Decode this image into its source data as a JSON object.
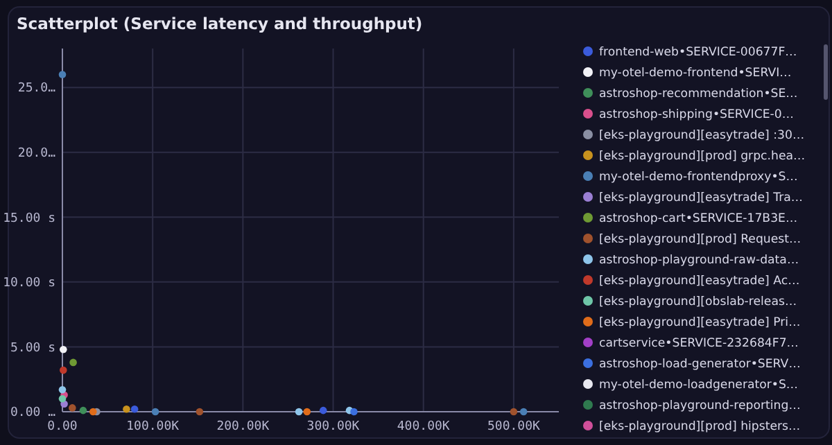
{
  "chart_data": {
    "type": "scatter",
    "title": "Scatterplot (Service latency and throughput)",
    "xlim": [
      0,
      550000
    ],
    "ylim": [
      0,
      28
    ],
    "xticks": [
      {
        "value": 0,
        "label": "0.00"
      },
      {
        "value": 100000,
        "label": "100.00K"
      },
      {
        "value": 200000,
        "label": "200.00K"
      },
      {
        "value": 300000,
        "label": "300.00K"
      },
      {
        "value": 400000,
        "label": "400.00K"
      },
      {
        "value": 500000,
        "label": "500.00K"
      }
    ],
    "yticks": [
      {
        "value": 0,
        "label": "0.00 …"
      },
      {
        "value": 5,
        "label": "5.00 s"
      },
      {
        "value": 10,
        "label": "10.00 s"
      },
      {
        "value": 15,
        "label": "15.00 s"
      },
      {
        "value": 20,
        "label": "20.0…"
      },
      {
        "value": 25,
        "label": "25.0…"
      }
    ],
    "grid": true,
    "legend": "right",
    "marker": "circle",
    "series": [
      {
        "name": "frontend-web•SERVICE-00677F…",
        "color": "#3b5bdb",
        "x": [
          80000,
          289000
        ],
        "values": [
          0.2,
          0.1
        ]
      },
      {
        "name": "my-otel-demo-frontend•SERVI…",
        "color": "#f2f2f7",
        "x": [
          1000
        ],
        "values": [
          4.8
        ]
      },
      {
        "name": "astroshop-recommendation•SE…",
        "color": "#3f8f5a",
        "x": [
          23000
        ],
        "values": [
          0.1
        ]
      },
      {
        "name": "astroshop-shipping•SERVICE-0…",
        "color": "#d94f8c",
        "x": [
          2000
        ],
        "values": [
          1.3
        ]
      },
      {
        "name": "[eks-playground][easytrade] :30…",
        "color": "#8a8fa3",
        "x": [
          38000
        ],
        "values": [
          0
        ]
      },
      {
        "name": "[eks-playground][prod] grpc.hea…",
        "color": "#c8921e",
        "x": [
          71000
        ],
        "values": [
          0.2
        ]
      },
      {
        "name": "my-otel-demo-frontendproxy•S…",
        "color": "#4a7fb5",
        "x": [
          0,
          103000,
          511000
        ],
        "values": [
          26,
          0,
          0
        ]
      },
      {
        "name": "[eks-playground][easytrade] Tra…",
        "color": "#9b7fd4",
        "x": [
          2000
        ],
        "values": [
          0.6
        ]
      },
      {
        "name": "astroshop-cart•SERVICE-17B3E…",
        "color": "#6f9a34",
        "x": [
          12000
        ],
        "values": [
          3.8
        ]
      },
      {
        "name": "[eks-playground][prod] Request…",
        "color": "#a0522d",
        "x": [
          11000,
          152000,
          500000
        ],
        "values": [
          0.3,
          0,
          0
        ]
      },
      {
        "name": "astroshop-playground-raw-data…",
        "color": "#8ec5ea",
        "x": [
          0,
          262000,
          318000
        ],
        "values": [
          1.7,
          0,
          0.1
        ]
      },
      {
        "name": "[eks-playground][easytrade] Ac…",
        "color": "#c0392b",
        "x": [
          1000
        ],
        "values": [
          3.2
        ]
      },
      {
        "name": "[eks-playground][obslab-releas…",
        "color": "#6fc6a8",
        "x": [
          0
        ],
        "values": [
          1.0
        ]
      },
      {
        "name": "[eks-playground][easytrade] Pri…",
        "color": "#e06c1a",
        "x": [
          34000,
          271000
        ],
        "values": [
          0,
          0
        ]
      },
      {
        "name": "cartservice•SERVICE-232684F7…",
        "color": "#a23fc7"
      },
      {
        "name": "astroshop-load-generator•SERV…",
        "color": "#3b6fe0",
        "x": [
          323000
        ],
        "values": [
          0
        ]
      },
      {
        "name": "my-otel-demo-loadgenerator•S…",
        "color": "#e8e8f0"
      },
      {
        "name": "astroshop-playground-reporting…",
        "color": "#2f7a4f"
      },
      {
        "name": "[eks-playground][prod] hipsters…",
        "color": "#d04f9a"
      }
    ]
  }
}
